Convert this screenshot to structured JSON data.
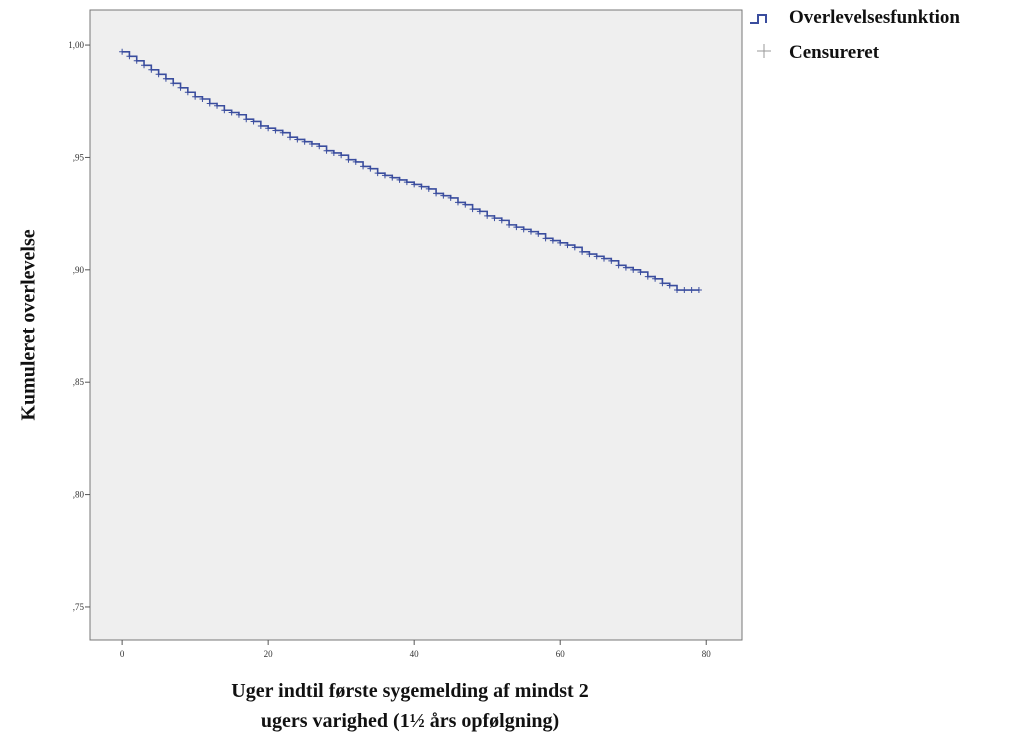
{
  "chart_data": {
    "type": "step",
    "ylabel": "Kumuleret overlevelse",
    "xlabel": [
      "Uger indtil første sygemelding af mindst 2",
      "ugers varighed (1½ års opfølgning)"
    ],
    "xlim": [
      -4.4,
      84.9
    ],
    "ylim": [
      0.7353,
      1.0156
    ],
    "xticks": [
      0,
      20,
      40,
      60,
      80
    ],
    "yticks": [
      {
        "value": 0.75,
        "label": ",75"
      },
      {
        "value": 0.8,
        "label": ",80"
      },
      {
        "value": 0.85,
        "label": ",85"
      },
      {
        "value": 0.9,
        "label": ",90"
      },
      {
        "value": 0.95,
        "label": ",95"
      },
      {
        "value": 1.0,
        "label": "1,00"
      }
    ],
    "x": [
      0,
      1,
      2,
      3,
      4,
      5,
      6,
      7,
      8,
      9,
      10,
      11,
      12,
      13,
      14,
      15,
      16,
      17,
      18,
      19,
      20,
      21,
      22,
      23,
      24,
      25,
      26,
      27,
      28,
      29,
      30,
      31,
      32,
      33,
      34,
      35,
      36,
      37,
      38,
      39,
      40,
      41,
      42,
      43,
      44,
      45,
      46,
      47,
      48,
      49,
      50,
      51,
      52,
      53,
      54,
      55,
      56,
      57,
      58,
      59,
      60,
      61,
      62,
      63,
      64,
      65,
      66,
      67,
      68,
      69,
      70,
      71,
      72,
      73,
      74,
      75,
      76,
      77,
      78,
      79
    ],
    "series": [
      {
        "name": "Overlevelsesfunktion",
        "color": "#3a4d9e",
        "values": [
          0.997,
          0.995,
          0.993,
          0.991,
          0.989,
          0.987,
          0.985,
          0.983,
          0.981,
          0.979,
          0.977,
          0.976,
          0.974,
          0.973,
          0.971,
          0.97,
          0.969,
          0.967,
          0.966,
          0.964,
          0.963,
          0.962,
          0.961,
          0.959,
          0.958,
          0.957,
          0.956,
          0.955,
          0.953,
          0.952,
          0.951,
          0.949,
          0.948,
          0.946,
          0.945,
          0.943,
          0.942,
          0.941,
          0.94,
          0.939,
          0.938,
          0.937,
          0.936,
          0.934,
          0.933,
          0.932,
          0.93,
          0.929,
          0.927,
          0.926,
          0.924,
          0.923,
          0.922,
          0.92,
          0.919,
          0.918,
          0.917,
          0.916,
          0.914,
          0.913,
          0.912,
          0.911,
          0.91,
          0.908,
          0.907,
          0.906,
          0.905,
          0.904,
          0.902,
          0.901,
          0.9,
          0.899,
          0.897,
          0.896,
          0.894,
          0.893,
          0.891,
          0.891,
          0.891,
          0.891
        ]
      },
      {
        "name": "Censureret",
        "color": "#3a4d9e"
      }
    ]
  }
}
